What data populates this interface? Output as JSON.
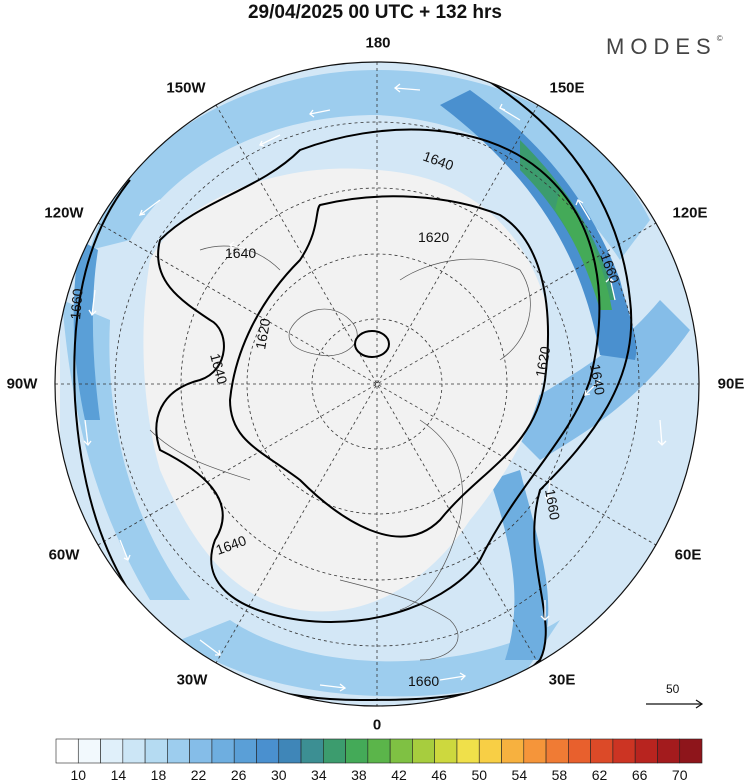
{
  "header": {
    "title": "29/04/2025  00 UTC  + 132 hrs",
    "logo_text": "MODES",
    "logo_mark": "©"
  },
  "map": {
    "projection": "polar-stereographic-north",
    "longitude_labels": {
      "top": "180",
      "top_right": "150E",
      "upper_right": "120E",
      "right": "90E",
      "lower_right": "60E",
      "bottom_right": "30E",
      "bottom": "0",
      "bottom_left": "30W",
      "lower_left": "60W",
      "left": "90W",
      "upper_left": "120W",
      "top_left": "150W"
    },
    "contour_labels": [
      "1640",
      "1620",
      "1660",
      "1640",
      "1620",
      "1640",
      "1620",
      "1640",
      "1620",
      "1660",
      "1640",
      "1660",
      "1640",
      "1660"
    ],
    "colors": {
      "land_shade": "#ededed",
      "ocean_bg": "#f4f4f4",
      "jet_light": "#cfe6f6",
      "jet_mid": "#8ec3ea",
      "jet_strong": "#4a90cf",
      "jet_core": "#3c9c6e"
    }
  },
  "colorbar": {
    "tick_labels": [
      "10",
      "14",
      "18",
      "22",
      "26",
      "30",
      "34",
      "38",
      "42",
      "46",
      "50",
      "54",
      "58",
      "62",
      "66",
      "70"
    ],
    "colors": [
      "#ffffff",
      "#f2f9fd",
      "#e0f0fa",
      "#cce6f6",
      "#b5dbf2",
      "#9dcdee",
      "#85bde8",
      "#6eaee0",
      "#5a9fd7",
      "#4a90cf",
      "#3f86b8",
      "#3c8f93",
      "#3c9c6e",
      "#44aa58",
      "#5bb54a",
      "#7fc143",
      "#a7cd3e",
      "#cdd83e",
      "#f0e04a",
      "#f8cf45",
      "#f7b13f",
      "#f5953a",
      "#f07b34",
      "#e8602d",
      "#dc4a28",
      "#cc3423",
      "#b8241f",
      "#a31b1d",
      "#8e151b"
    ]
  },
  "reference_vector": {
    "label": "50"
  }
}
